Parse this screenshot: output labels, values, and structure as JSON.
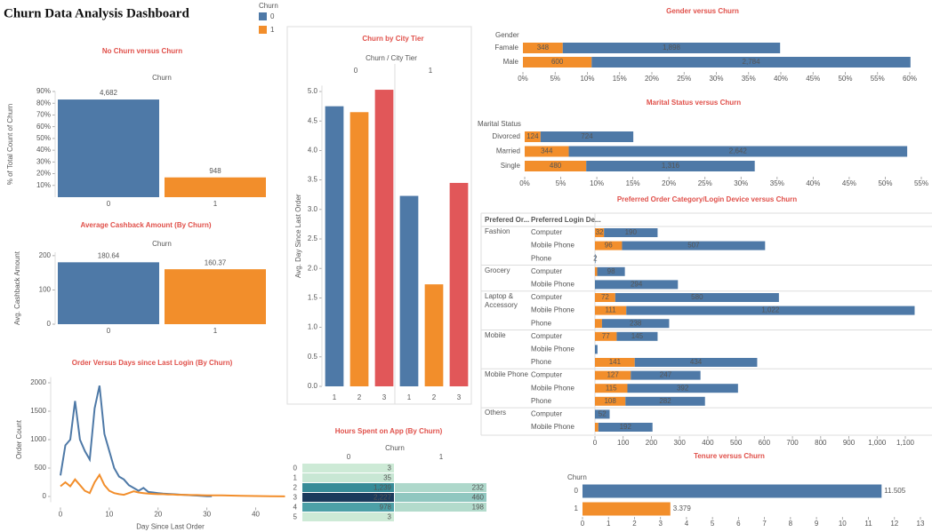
{
  "title": "Churn Data Analysis Dashboard",
  "legend": {
    "title": "Churn",
    "items": [
      {
        "name": "0",
        "color": "#4e79a7"
      },
      {
        "name": "1",
        "color": "#f28e2b"
      }
    ]
  },
  "chart_data": [
    {
      "type": "bar",
      "title": "No Churn versus Churn",
      "header": "Churn",
      "y_label": "% of Total Count of Churn",
      "categories": [
        "0",
        "1"
      ],
      "values": [
        83.16,
        16.84
      ],
      "count_labels": [
        "4,682",
        "948"
      ],
      "colors": [
        "#4e79a7",
        "#f28e2b"
      ],
      "ylim": [
        0,
        90
      ],
      "yticks": [
        {
          "value": 10,
          "label": "10%"
        },
        {
          "value": 20,
          "label": "20%"
        },
        {
          "value": 30,
          "label": "30%"
        },
        {
          "value": 40,
          "label": "40%"
        },
        {
          "value": 50,
          "label": "50%"
        },
        {
          "value": 60,
          "label": "60%"
        },
        {
          "value": 70,
          "label": "70%"
        },
        {
          "value": 80,
          "label": "80%"
        },
        {
          "value": 90,
          "label": "90%"
        }
      ]
    },
    {
      "type": "bar",
      "title": "Average Cashback Amount (By Churn)",
      "header": "Churn",
      "y_label": "Avg. Cashback Amount",
      "categories": [
        "0",
        "1"
      ],
      "values": [
        180.64,
        160.37
      ],
      "colors": [
        "#4e79a7",
        "#f28e2b"
      ],
      "ylim": [
        0,
        210
      ],
      "yticks": [
        0,
        100,
        200
      ]
    },
    {
      "type": "line",
      "title": "Order Versus Days since Last Login (By Churn)",
      "x_label": "Day Since Last Order",
      "y_label": "Order Count",
      "x": [
        0,
        1,
        2,
        3,
        4,
        5,
        6,
        7,
        8,
        9,
        10,
        11,
        12,
        13,
        14,
        15,
        16,
        17,
        18,
        19,
        20,
        21,
        22,
        23,
        24,
        25,
        26,
        27,
        28,
        29,
        30,
        31,
        33,
        35,
        37,
        40,
        43,
        46
      ],
      "series": [
        {
          "color": "#4e79a7",
          "values": [
            370,
            900,
            1000,
            1680,
            1000,
            800,
            650,
            1550,
            1950,
            1100,
            800,
            500,
            350,
            300,
            200,
            150,
            100,
            150,
            80,
            70,
            60,
            50,
            45,
            40,
            35,
            30,
            25,
            20,
            15,
            10,
            5,
            3,
            null,
            null,
            null,
            null,
            null,
            null
          ]
        },
        {
          "color": "#f28e2b",
          "values": [
            180,
            250,
            180,
            300,
            200,
            100,
            60,
            250,
            380,
            200,
            100,
            60,
            40,
            30,
            60,
            90,
            70,
            60,
            50,
            45,
            40,
            40,
            35,
            35,
            30,
            30,
            28,
            25,
            25,
            22,
            20,
            20,
            18,
            15,
            12,
            8,
            5,
            2
          ]
        }
      ],
      "xlim": [
        -2,
        47
      ],
      "xticks": [
        0,
        10,
        20,
        30,
        40
      ],
      "ylim": [
        -100,
        2100
      ],
      "yticks": [
        0,
        500,
        1000,
        1500,
        2000
      ]
    },
    {
      "type": "grouped_bar",
      "title": "Churn by City Tier",
      "header": "Churn / City Tier",
      "y_label": "Avg. Day Since Last Order",
      "panels": [
        {
          "name": "0",
          "categories": [
            "1",
            "2",
            "3"
          ],
          "values": [
            4.75,
            4.65,
            5.03
          ]
        },
        {
          "name": "1",
          "categories": [
            "1",
            "2",
            "3"
          ],
          "values": [
            3.23,
            1.73,
            3.45
          ]
        }
      ],
      "colors": [
        "#4e79a7",
        "#f28e2b",
        "#e15759"
      ],
      "ylim": [
        0,
        5.1
      ],
      "yticks": [
        {
          "value": 0,
          "label": "0.0"
        },
        0.5,
        {
          "value": 1,
          "label": "1.0"
        },
        1.5,
        {
          "value": 2,
          "label": "2.0"
        },
        2.5,
        {
          "value": 3,
          "label": "3.0"
        },
        3.5,
        {
          "value": 4,
          "label": "4.0"
        },
        4.5,
        {
          "value": 5,
          "label": "5.0"
        }
      ]
    },
    {
      "type": "heatmap",
      "title": "Hours Spent on App (By Churn)",
      "header": "Churn",
      "columns": [
        "0",
        "1"
      ],
      "rows": [
        "0",
        "1",
        "2",
        "3",
        "4",
        "5"
      ],
      "values": [
        [
          3,
          null
        ],
        [
          35,
          null
        ],
        [
          1239,
          232
        ],
        [
          2227,
          460
        ],
        [
          978,
          198
        ],
        [
          3,
          null
        ]
      ],
      "value_labels": [
        [
          "3",
          null
        ],
        [
          "35",
          null
        ],
        [
          "1,239",
          "232"
        ],
        [
          "2,227",
          "460"
        ],
        [
          "978",
          "198"
        ],
        [
          "3",
          null
        ]
      ]
    },
    {
      "type": "hbar_stacked",
      "title": "Gender versus Churn",
      "header": "Gender",
      "categories": [
        "Famale",
        "Male"
      ],
      "series": [
        {
          "color": "#f28e2b",
          "values": [
            6.18,
            10.66
          ],
          "count_labels": [
            "348",
            "600"
          ]
        },
        {
          "color": "#4e79a7",
          "values": [
            33.71,
            49.45
          ],
          "count_labels": [
            "1,898",
            "2,784"
          ]
        }
      ],
      "xlim": [
        0,
        60
      ],
      "xticks": [
        {
          "value": 0,
          "label": "0%"
        },
        {
          "value": 5,
          "label": "5%"
        },
        {
          "value": 10,
          "label": "10%"
        },
        {
          "value": 15,
          "label": "15%"
        },
        {
          "value": 20,
          "label": "20%"
        },
        {
          "value": 25,
          "label": "25%"
        },
        {
          "value": 30,
          "label": "30%"
        },
        {
          "value": 35,
          "label": "35%"
        },
        {
          "value": 40,
          "label": "40%"
        },
        {
          "value": 45,
          "label": "45%"
        },
        {
          "value": 50,
          "label": "50%"
        },
        {
          "value": 55,
          "label": "55%"
        },
        {
          "value": 60,
          "label": "60%"
        }
      ]
    },
    {
      "type": "hbar_stacked",
      "title": "Marital Status versus Churn",
      "header": "Marital Status",
      "categories": [
        "Divorced",
        "Married",
        "Single"
      ],
      "series": [
        {
          "color": "#f28e2b",
          "values": [
            2.2,
            6.11,
            8.53
          ],
          "count_labels": [
            "124",
            "344",
            "480"
          ]
        },
        {
          "color": "#4e79a7",
          "values": [
            12.86,
            46.93,
            23.37
          ],
          "count_labels": [
            "724",
            "2,642",
            "1,316"
          ]
        }
      ],
      "xlim": [
        0,
        55
      ],
      "xticks": [
        {
          "value": 0,
          "label": "0%"
        },
        {
          "value": 5,
          "label": "5%"
        },
        {
          "value": 10,
          "label": "10%"
        },
        {
          "value": 15,
          "label": "15%"
        },
        {
          "value": 20,
          "label": "20%"
        },
        {
          "value": 25,
          "label": "25%"
        },
        {
          "value": 30,
          "label": "30%"
        },
        {
          "value": 35,
          "label": "35%"
        },
        {
          "value": 40,
          "label": "40%"
        },
        {
          "value": 45,
          "label": "45%"
        },
        {
          "value": 50,
          "label": "50%"
        },
        {
          "value": 55,
          "label": "55%"
        }
      ]
    },
    {
      "type": "hbar_grouped_stacked",
      "title": "Preferred Order Category/Login Device versus Churn",
      "headers": [
        "Prefered Or...",
        "Preferred Login De..."
      ],
      "groups": [
        {
          "name": "Fashion",
          "categories": [
            "Computer",
            "Mobile Phone",
            "Phone"
          ]
        },
        {
          "name": "Grocery",
          "categories": [
            "Computer",
            "Mobile Phone"
          ]
        },
        {
          "name": "Laptop & Accessory",
          "categories": [
            "Computer",
            "Mobile Phone",
            "Phone"
          ]
        },
        {
          "name": "Mobile",
          "categories": [
            "Computer",
            "Mobile Phone",
            "Phone"
          ]
        },
        {
          "name": "Mobile Phone",
          "categories": [
            "Computer",
            "Mobile Phone",
            "Phone"
          ]
        },
        {
          "name": "Others",
          "categories": [
            "Computer",
            "Mobile Phone"
          ]
        }
      ],
      "series": [
        {
          "color": "#f28e2b",
          "values": [
            32,
            96,
            null,
            8,
            null,
            72,
            111,
            25,
            77,
            null,
            141,
            127,
            115,
            108,
            null,
            12
          ],
          "value_labels": [
            "32",
            "96",
            null,
            null,
            null,
            "72",
            "111",
            null,
            "77",
            null,
            "141",
            "127",
            "115",
            "108",
            null,
            null
          ]
        },
        {
          "color": "#4e79a7",
          "values": [
            190,
            507,
            2,
            98,
            294,
            580,
            1022,
            238,
            145,
            9,
            434,
            247,
            392,
            282,
            52,
            192
          ],
          "value_labels": [
            "190",
            "507",
            "2",
            "98",
            "294",
            "580",
            "1,022",
            "238",
            "145",
            null,
            "434",
            "247",
            "392",
            "282",
            "52",
            "192"
          ]
        }
      ],
      "xlim": [
        0,
        1100
      ],
      "xticks": [
        0,
        100,
        200,
        300,
        400,
        500,
        600,
        700,
        800,
        900,
        {
          "value": 1000,
          "label": "1,000"
        },
        {
          "value": 1100,
          "label": "1,100"
        }
      ]
    },
    {
      "type": "hbar",
      "title": "Tenure versus Churn",
      "header": "Churn",
      "categories": [
        "0",
        "1"
      ],
      "values": [
        11.505,
        3.379
      ],
      "colors": [
        "#4e79a7",
        "#f28e2b"
      ],
      "xlim": [
        0,
        13
      ],
      "xticks": [
        0,
        1,
        2,
        3,
        4,
        5,
        6,
        7,
        8,
        9,
        10,
        11,
        12,
        13
      ]
    }
  ]
}
